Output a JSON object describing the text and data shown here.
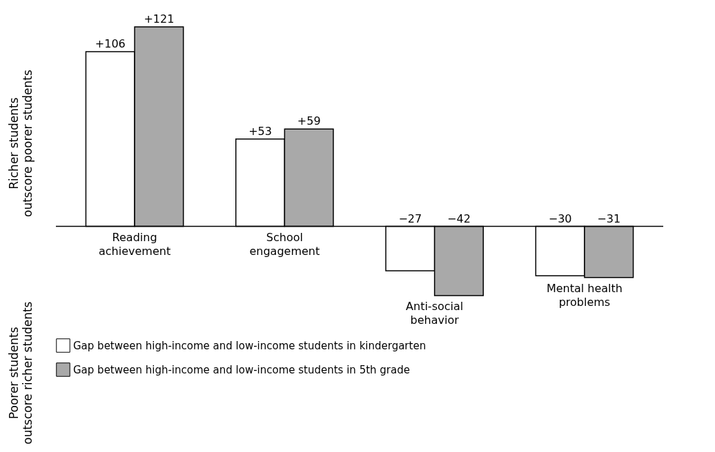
{
  "chart_data": {
    "type": "bar",
    "ylabel": "Richer students outscore poorer students",
    "annotations": [
      "Poorer students outscore richer students"
    ],
    "categories": [
      "Reading achievement",
      "School engagement",
      "Anti-social behavior",
      "Mental health problems"
    ],
    "series": [
      {
        "name": "Gap between high-income and low-income students in kindergarten",
        "color": "#ffffff",
        "values": [
          106,
          53,
          -27,
          -30
        ],
        "value_labels": [
          "+106",
          "+53",
          "−27",
          "−30"
        ]
      },
      {
        "name": "Gap between high-income and low-income students in 5th grade",
        "color": "#a9a9a9",
        "values": [
          121,
          59,
          -42,
          -31
        ],
        "value_labels": [
          "+121",
          "+59",
          "−42",
          "−31"
        ]
      }
    ],
    "legend": "bottom left",
    "tick_labels": "x"
  }
}
